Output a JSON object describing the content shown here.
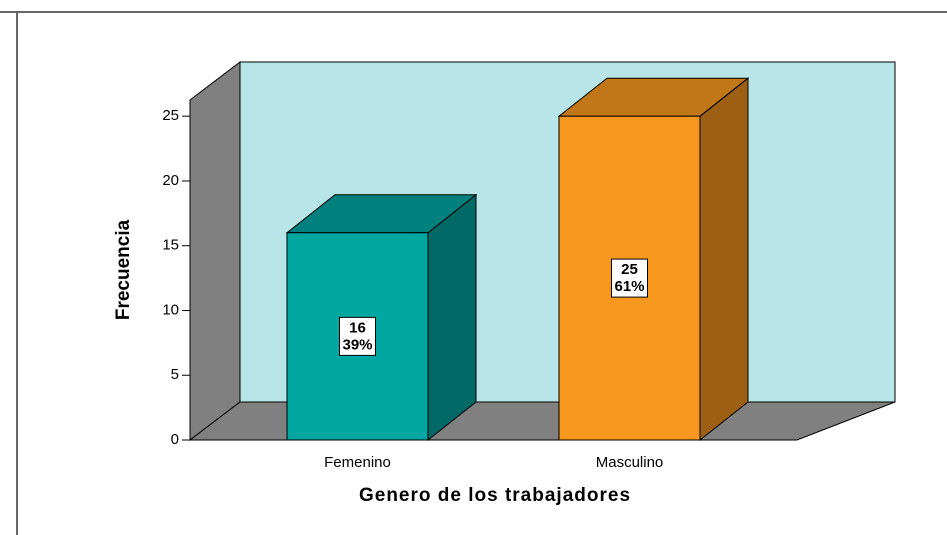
{
  "chart_data": {
    "type": "bar3d",
    "x_label": "Genero de los trabajadores",
    "y_label": "Frecuencia",
    "categories": [
      "Femenino",
      "Masculino"
    ],
    "values": [
      16,
      25
    ],
    "percent_labels": [
      "39%",
      "61%"
    ],
    "colors": [
      "#00a6a0",
      "#f7971e"
    ],
    "ylim": [
      0,
      26.25
    ],
    "yticks": [
      0,
      5,
      10,
      15,
      20,
      25
    ]
  }
}
